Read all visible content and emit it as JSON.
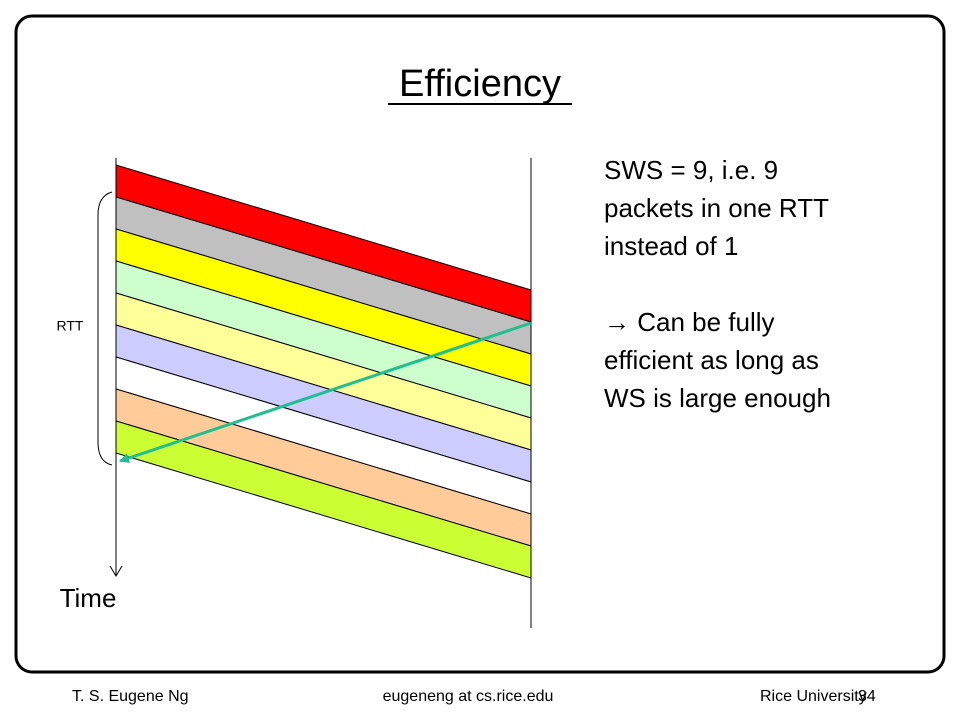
{
  "title": "Efficiency",
  "diagram": {
    "rtt_label": "RTT",
    "time_label": "Time"
  },
  "text": {
    "lines": [
      "SWS = 9, i.e. 9",
      "packets in one RTT",
      "instead of 1"
    ],
    "note_lines": [
      "→ Can be fully",
      "efficient as long as",
      "WS is large enough"
    ]
  },
  "footer": {
    "author": "T. S. Eugene Ng",
    "email": "eugeneng at cs.rice.edu",
    "institution": "Rice University",
    "page": "34"
  }
}
